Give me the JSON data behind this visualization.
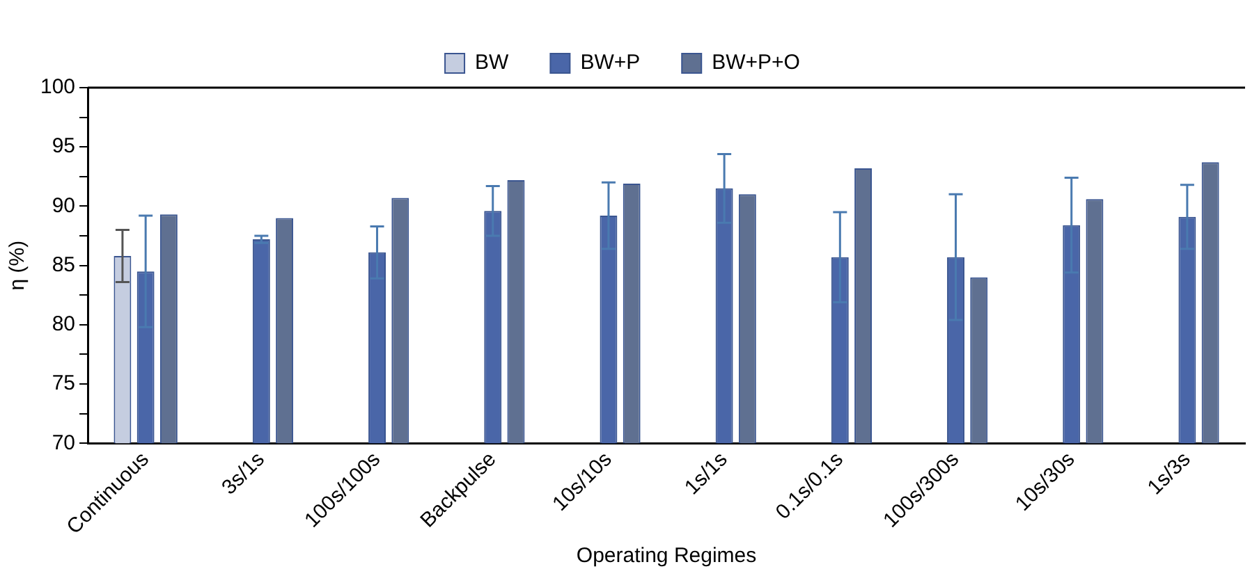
{
  "chart_data": {
    "type": "bar",
    "xlabel": "Operating Regimes",
    "ylabel": "η (%)",
    "categories": [
      "Continuous",
      "3s/1s",
      "100s/100s",
      "Backpulse",
      "10s/10s",
      "1s/1s",
      "0.1s/0.1s",
      "100s/300s",
      "10s/30s",
      "1s/3s"
    ],
    "series": [
      {
        "name": "BW",
        "color": "#c5cde0",
        "values": [
          85.8,
          null,
          null,
          null,
          null,
          null,
          null,
          null,
          null,
          null
        ],
        "errors": [
          2.2,
          null,
          null,
          null,
          null,
          null,
          null,
          null,
          null,
          null
        ]
      },
      {
        "name": "BW+P",
        "color": "#4a66a8",
        "values": [
          84.5,
          87.2,
          86.1,
          89.6,
          89.2,
          91.5,
          85.7,
          85.7,
          88.4,
          89.1
        ],
        "errors": [
          4.7,
          0.3,
          2.2,
          2.1,
          2.8,
          2.9,
          3.8,
          5.3,
          4.0,
          2.7
        ]
      },
      {
        "name": "BW+P+O",
        "color": "#5f7091",
        "values": [
          89.3,
          89.0,
          90.7,
          92.2,
          91.9,
          91.0,
          93.2,
          84.0,
          90.6,
          93.7
        ]
      }
    ],
    "ylim": [
      70,
      100
    ],
    "yticks": [
      70,
      {
        "value": 72.5,
        "label": null
      },
      75,
      {
        "value": 77.5,
        "label": null
      },
      80,
      {
        "value": 82.5,
        "label": null
      },
      85,
      {
        "value": 87.5,
        "label": null
      },
      90,
      {
        "value": 92.5,
        "label": null
      },
      95,
      {
        "value": 97.5,
        "label": null
      },
      100
    ],
    "grid": false,
    "legend": "top"
  }
}
